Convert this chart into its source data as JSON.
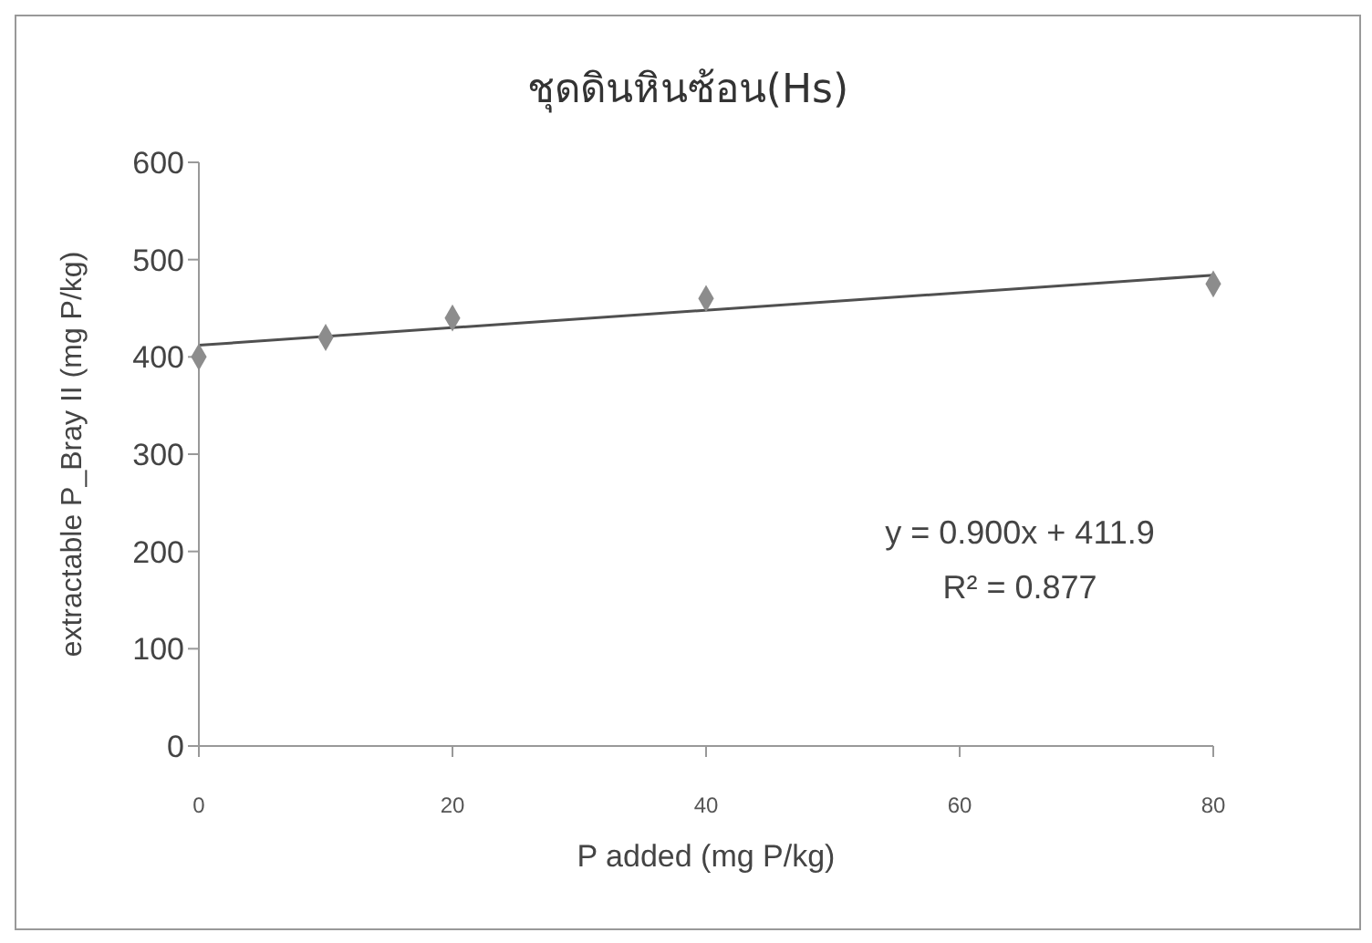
{
  "chart_data": {
    "type": "scatter",
    "title": "ชุดดินหินซ้อน(Hs)",
    "xlabel": "P added (mg P/kg)",
    "ylabel": "extractable P_Bray II (mg P/kg)",
    "series": [
      {
        "color": "#8c8c8c",
        "marker": "diamond",
        "x": [
          0,
          10,
          20,
          40,
          80
        ],
        "values": [
          400,
          420,
          440,
          460,
          475
        ]
      },
      {
        "type": "line",
        "color": "#505050",
        "marker": "none",
        "line_style": "solid",
        "x": [
          0,
          80
        ],
        "values": [
          412,
          484
        ]
      }
    ],
    "xlim": [
      0,
      80
    ],
    "xticks": [
      0,
      20,
      40,
      60,
      80
    ],
    "ylim": [
      0,
      600
    ],
    "yticks": [
      0,
      100,
      200,
      300,
      400,
      500,
      600
    ],
    "grid": false,
    "annotations": [
      "y = 0.900x + 411.9",
      "R² = 0.877"
    ]
  }
}
